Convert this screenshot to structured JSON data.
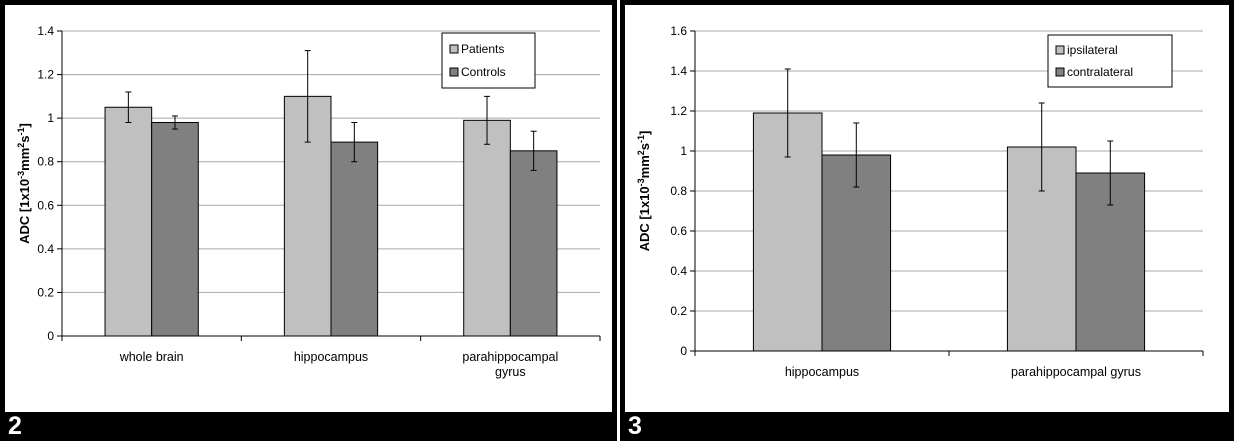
{
  "chart_data": [
    {
      "type": "bar",
      "panel_label": "2",
      "categories": [
        [
          "whole brain"
        ],
        [
          "hippocampus"
        ],
        [
          "parahippocampal",
          "gyrus"
        ]
      ],
      "series": [
        {
          "name": "Patients",
          "values": [
            1.05,
            1.1,
            0.99
          ],
          "errors": [
            0.07,
            0.21,
            0.11
          ],
          "color": "#c0c0c0"
        },
        {
          "name": "Controls",
          "values": [
            0.98,
            0.89,
            0.85
          ],
          "errors": [
            0.03,
            0.09,
            0.09
          ],
          "color": "#808080"
        }
      ],
      "ylabel_parts": [
        "ADC [1x10",
        "-3",
        "mm",
        "2",
        "s",
        "-1",
        "]"
      ],
      "ylim": [
        0,
        1.4
      ],
      "yticks": [
        "0",
        "0.2",
        "0.4",
        "0.6",
        "0.8",
        "1",
        "1.2",
        "1.4"
      ],
      "grid": true,
      "legend_position": "top-right"
    },
    {
      "type": "bar",
      "panel_label": "3",
      "categories": [
        [
          "hippocampus"
        ],
        [
          "parahippocampal gyrus"
        ]
      ],
      "series": [
        {
          "name": "ipsilateral",
          "values": [
            1.19,
            1.02
          ],
          "errors": [
            0.22,
            0.22
          ],
          "color": "#c0c0c0"
        },
        {
          "name": "contralateral",
          "values": [
            0.98,
            0.89
          ],
          "errors": [
            0.16,
            0.16
          ],
          "color": "#808080"
        }
      ],
      "ylabel_parts": [
        "ADC [1x10",
        "-3",
        "mm",
        "2",
        "s",
        "-1",
        "]"
      ],
      "ylim": [
        0,
        1.6
      ],
      "yticks": [
        "0",
        "0.2",
        "0.4",
        "0.6",
        "0.8",
        "1",
        "1.2",
        "1.4",
        "1.6"
      ],
      "grid": true,
      "legend_position": "top-right"
    }
  ]
}
